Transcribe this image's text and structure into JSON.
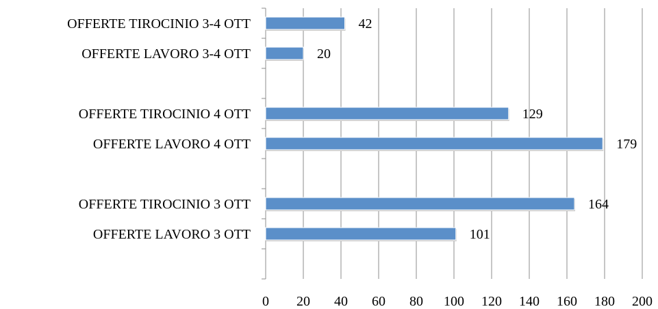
{
  "chart_data": {
    "type": "bar",
    "orientation": "horizontal",
    "title": "",
    "xlabel": "",
    "ylabel": "",
    "xlim": [
      0,
      200
    ],
    "x_ticks": [
      0,
      20,
      40,
      60,
      80,
      100,
      120,
      140,
      160,
      180,
      200
    ],
    "x_tick_labels": [
      "0",
      "20",
      "40",
      "60",
      "80",
      "100",
      "120",
      "140",
      "160",
      "180",
      "200"
    ],
    "grid": "vertical",
    "legend": "none",
    "bar_color": "#5b8fc9",
    "groups_top_to_bottom": [
      {
        "bars": [
          {
            "label": "OFFERTE TIROCINIO 3-4 OTT",
            "value": 42,
            "value_label": "42"
          },
          {
            "label": "OFFERTE LAVORO 3-4 OTT",
            "value": 20,
            "value_label": "20"
          }
        ]
      },
      {
        "bars": [
          {
            "label": "OFFERTE TIROCINIO 4 OTT",
            "value": 129,
            "value_label": "129"
          },
          {
            "label": "OFFERTE LAVORO 4 OTT",
            "value": 179,
            "value_label": "179"
          }
        ]
      },
      {
        "bars": [
          {
            "label": "OFFERTE TIROCINIO 3 OTT",
            "value": 164,
            "value_label": "164"
          },
          {
            "label": "OFFERTE LAVORO 3 OTT",
            "value": 101,
            "value_label": "101"
          }
        ]
      }
    ]
  }
}
